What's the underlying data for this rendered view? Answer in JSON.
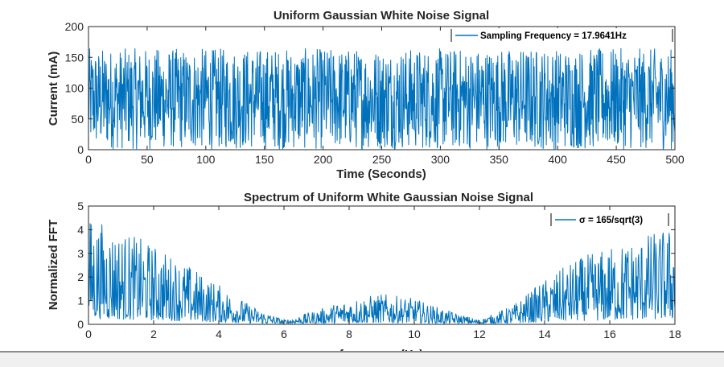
{
  "chart_data": [
    {
      "type": "line",
      "title": "Uniform Gaussian White Noise Signal",
      "xlabel": "Time (Seconds)",
      "ylabel": "Current (mA)",
      "xlim": [
        0,
        500
      ],
      "ylim": [
        0,
        200
      ],
      "xticks": [
        0,
        50,
        100,
        150,
        200,
        250,
        300,
        350,
        400,
        450,
        500
      ],
      "yticks": [
        0,
        50,
        100,
        150,
        200
      ],
      "grid": false,
      "legend_position": "top-right",
      "color": "#0072BD",
      "series": [
        {
          "name": "Sampling Frequency = 17.9641Hz",
          "sampling_rate_hz": 17.9641,
          "value_range": [
            0,
            165
          ],
          "mean": 82.5
        }
      ]
    },
    {
      "type": "line",
      "title": "Spectrum of Uniform White Gaussian Noise Signal",
      "xlabel": "frequency (Hz)",
      "ylabel": "Normalized FFT",
      "xlim": [
        0,
        18
      ],
      "ylim": [
        0,
        5
      ],
      "xticks": [
        0,
        2,
        4,
        6,
        8,
        10,
        12,
        14,
        16,
        18
      ],
      "yticks": [
        0,
        1,
        2,
        3,
        4,
        5
      ],
      "grid": false,
      "legend_position": "top-right",
      "color": "#0072BD",
      "series": [
        {
          "name": "σ = 165/sqrt(3)",
          "envelope_x": [
            0,
            1,
            2,
            3,
            4,
            5,
            6,
            7,
            8,
            9,
            10,
            11,
            12,
            13,
            14,
            15,
            16,
            17,
            18
          ],
          "envelope_peak": [
            4.6,
            4.0,
            3.4,
            2.6,
            1.7,
            0.8,
            0.2,
            0.6,
            1.1,
            1.3,
            1.1,
            0.6,
            0.2,
            0.8,
            1.9,
            2.8,
            3.3,
            3.8,
            4.2
          ]
        }
      ]
    }
  ]
}
